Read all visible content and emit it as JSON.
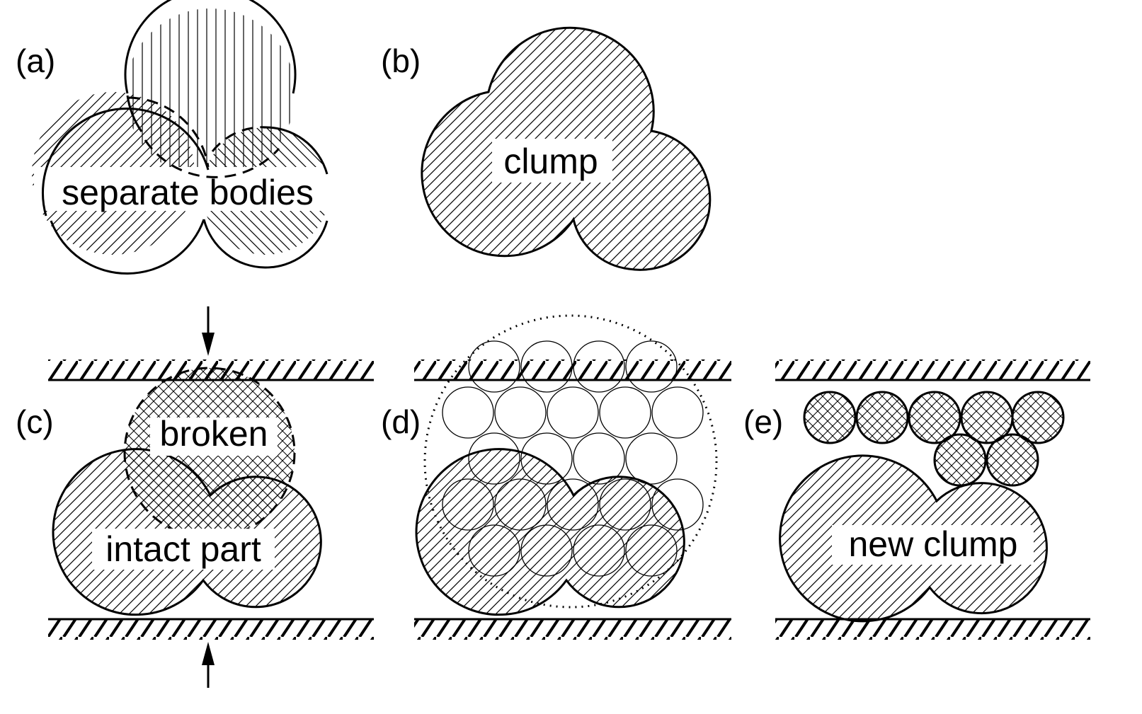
{
  "panels": {
    "a": {
      "label": "(a)",
      "caption": "separate bodies"
    },
    "b": {
      "label": "(b)",
      "caption": "clump"
    },
    "c": {
      "label": "(c)",
      "caption_intact": "intact part",
      "caption_broken": "broken"
    },
    "d": {
      "label": "(d)"
    },
    "e": {
      "label": "(e)",
      "caption": "new clump"
    }
  },
  "colors": {
    "ink": "#000000",
    "background": "#ffffff"
  },
  "icons": [
    "arrow-down-icon",
    "arrow-up-icon"
  ]
}
